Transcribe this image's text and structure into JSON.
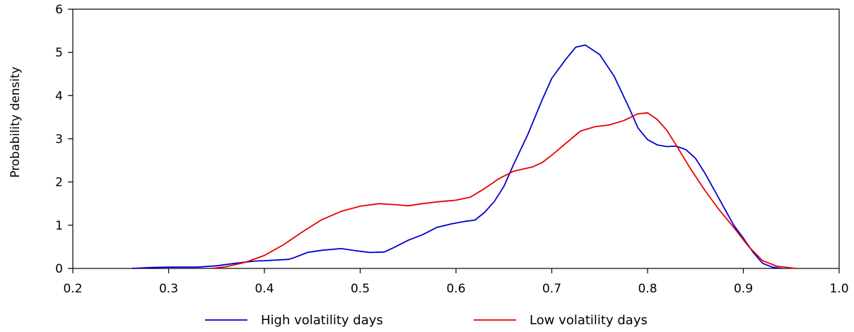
{
  "chart_data": {
    "type": "line",
    "title": "",
    "xlabel": "",
    "ylabel": "Probability density",
    "xlim": [
      0.2,
      1.0
    ],
    "ylim": [
      0,
      6
    ],
    "x_ticks": [
      "0.2",
      "0.3",
      "0.4",
      "0.5",
      "0.6",
      "0.7",
      "0.8",
      "0.9",
      "1.0"
    ],
    "y_ticks": [
      "0",
      "1",
      "2",
      "3",
      "4",
      "5",
      "6"
    ],
    "grid": false,
    "legend_position": "bottom",
    "series": [
      {
        "name": "High volatility days",
        "color": "#0000cc",
        "points": [
          [
            0.262,
            0.0
          ],
          [
            0.28,
            0.02
          ],
          [
            0.3,
            0.03
          ],
          [
            0.33,
            0.03
          ],
          [
            0.35,
            0.06
          ],
          [
            0.37,
            0.12
          ],
          [
            0.39,
            0.17
          ],
          [
            0.41,
            0.19
          ],
          [
            0.425,
            0.21
          ],
          [
            0.43,
            0.24
          ],
          [
            0.445,
            0.37
          ],
          [
            0.46,
            0.42
          ],
          [
            0.48,
            0.46
          ],
          [
            0.495,
            0.41
          ],
          [
            0.51,
            0.37
          ],
          [
            0.525,
            0.38
          ],
          [
            0.535,
            0.48
          ],
          [
            0.55,
            0.65
          ],
          [
            0.565,
            0.78
          ],
          [
            0.58,
            0.95
          ],
          [
            0.595,
            1.03
          ],
          [
            0.61,
            1.09
          ],
          [
            0.62,
            1.12
          ],
          [
            0.63,
            1.3
          ],
          [
            0.64,
            1.55
          ],
          [
            0.65,
            1.9
          ],
          [
            0.66,
            2.4
          ],
          [
            0.675,
            3.1
          ],
          [
            0.69,
            3.9
          ],
          [
            0.7,
            4.4
          ],
          [
            0.715,
            4.85
          ],
          [
            0.725,
            5.12
          ],
          [
            0.735,
            5.17
          ],
          [
            0.75,
            4.95
          ],
          [
            0.765,
            4.45
          ],
          [
            0.78,
            3.75
          ],
          [
            0.79,
            3.25
          ],
          [
            0.8,
            2.98
          ],
          [
            0.81,
            2.86
          ],
          [
            0.82,
            2.82
          ],
          [
            0.83,
            2.83
          ],
          [
            0.84,
            2.75
          ],
          [
            0.85,
            2.55
          ],
          [
            0.86,
            2.2
          ],
          [
            0.875,
            1.6
          ],
          [
            0.89,
            1.0
          ],
          [
            0.9,
            0.7
          ],
          [
            0.91,
            0.38
          ],
          [
            0.92,
            0.12
          ],
          [
            0.93,
            0.03
          ],
          [
            0.94,
            0.0
          ]
        ]
      },
      {
        "name": "Low volatility days",
        "color": "#e60000",
        "points": [
          [
            0.345,
            0.0
          ],
          [
            0.36,
            0.04
          ],
          [
            0.38,
            0.14
          ],
          [
            0.4,
            0.3
          ],
          [
            0.42,
            0.55
          ],
          [
            0.44,
            0.85
          ],
          [
            0.46,
            1.13
          ],
          [
            0.48,
            1.32
          ],
          [
            0.5,
            1.44
          ],
          [
            0.52,
            1.5
          ],
          [
            0.54,
            1.47
          ],
          [
            0.55,
            1.45
          ],
          [
            0.565,
            1.5
          ],
          [
            0.58,
            1.54
          ],
          [
            0.6,
            1.58
          ],
          [
            0.615,
            1.65
          ],
          [
            0.63,
            1.85
          ],
          [
            0.645,
            2.08
          ],
          [
            0.66,
            2.25
          ],
          [
            0.68,
            2.35
          ],
          [
            0.69,
            2.45
          ],
          [
            0.7,
            2.62
          ],
          [
            0.715,
            2.9
          ],
          [
            0.73,
            3.18
          ],
          [
            0.745,
            3.28
          ],
          [
            0.76,
            3.32
          ],
          [
            0.775,
            3.42
          ],
          [
            0.79,
            3.58
          ],
          [
            0.8,
            3.6
          ],
          [
            0.81,
            3.45
          ],
          [
            0.82,
            3.2
          ],
          [
            0.83,
            2.85
          ],
          [
            0.845,
            2.3
          ],
          [
            0.86,
            1.8
          ],
          [
            0.875,
            1.35
          ],
          [
            0.89,
            0.95
          ],
          [
            0.905,
            0.52
          ],
          [
            0.92,
            0.18
          ],
          [
            0.935,
            0.05
          ],
          [
            0.955,
            0.0
          ]
        ]
      }
    ]
  }
}
